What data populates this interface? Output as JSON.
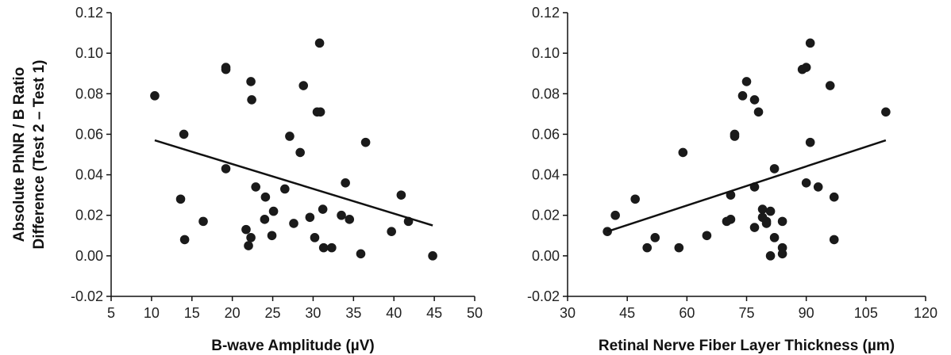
{
  "chart_data": [
    {
      "type": "scatter",
      "title": "",
      "xlabel": "B-wave Amplitude (µV)",
      "ylabel": "Absolute PhNR / B Ratio Difference (Test 2 – Test 1)",
      "ylabel_lines": [
        "Absolute PhNR / B Ratio",
        "Difference (Test 2 – Test 1)"
      ],
      "xlim": [
        5,
        50
      ],
      "ylim": [
        -0.02,
        0.12
      ],
      "x_ticks": [
        5,
        10,
        15,
        20,
        25,
        30,
        35,
        40,
        45,
        50
      ],
      "x_tick_labels": [
        "5",
        "10",
        "15",
        "20",
        "25",
        "30",
        "35",
        "40",
        "45",
        "50"
      ],
      "y_ticks": [
        -0.02,
        0.0,
        0.02,
        0.04,
        0.06,
        0.08,
        0.1,
        0.12
      ],
      "y_tick_labels": [
        "-0.02",
        "0.00",
        "0.02",
        "0.04",
        "0.06",
        "0.08",
        "0.10",
        "0.12"
      ],
      "grid": false,
      "trendline": [
        [
          10.4,
          0.057
        ],
        [
          44.8,
          0.015
        ]
      ],
      "points": [
        [
          10.4,
          0.079
        ],
        [
          13.6,
          0.028
        ],
        [
          14.0,
          0.06
        ],
        [
          14.1,
          0.008
        ],
        [
          16.4,
          0.017
        ],
        [
          19.2,
          0.093
        ],
        [
          19.2,
          0.092
        ],
        [
          19.2,
          0.043
        ],
        [
          21.7,
          0.013
        ],
        [
          22.0,
          0.005
        ],
        [
          22.3,
          0.086
        ],
        [
          22.4,
          0.077
        ],
        [
          22.3,
          0.009
        ],
        [
          22.9,
          0.034
        ],
        [
          24.1,
          0.029
        ],
        [
          24.0,
          0.018
        ],
        [
          24.9,
          0.01
        ],
        [
          25.1,
          0.022
        ],
        [
          26.5,
          0.033
        ],
        [
          27.1,
          0.059
        ],
        [
          27.6,
          0.016
        ],
        [
          28.4,
          0.051
        ],
        [
          28.8,
          0.084
        ],
        [
          29.6,
          0.019
        ],
        [
          30.2,
          0.009
        ],
        [
          30.5,
          0.071
        ],
        [
          30.9,
          0.071
        ],
        [
          30.8,
          0.105
        ],
        [
          31.2,
          0.023
        ],
        [
          31.3,
          0.004
        ],
        [
          32.3,
          0.004
        ],
        [
          33.5,
          0.02
        ],
        [
          34.0,
          0.036
        ],
        [
          34.5,
          0.018
        ],
        [
          35.9,
          0.001
        ],
        [
          36.5,
          0.056
        ],
        [
          39.7,
          0.012
        ],
        [
          40.9,
          0.03
        ],
        [
          41.8,
          0.017
        ],
        [
          44.8,
          0.0
        ]
      ]
    },
    {
      "type": "scatter",
      "title": "",
      "xlabel": "Retinal Nerve Fiber Layer Thickness (µm)",
      "ylabel": "",
      "xlim": [
        30,
        120
      ],
      "ylim": [
        -0.02,
        0.12
      ],
      "x_ticks": [
        30,
        45,
        60,
        75,
        90,
        105,
        120
      ],
      "x_tick_labels": [
        "30",
        "45",
        "60",
        "75",
        "90",
        "105",
        "120"
      ],
      "y_ticks": [
        -0.02,
        0.0,
        0.02,
        0.04,
        0.06,
        0.08,
        0.1,
        0.12
      ],
      "y_tick_labels": [
        "-0.02",
        "0.00",
        "0.02",
        "0.04",
        "0.06",
        "0.08",
        "0.10",
        "0.12"
      ],
      "grid": false,
      "trendline": [
        [
          40,
          0.012
        ],
        [
          110,
          0.057
        ]
      ],
      "points": [
        [
          40.0,
          0.012
        ],
        [
          42.0,
          0.02
        ],
        [
          47.0,
          0.028
        ],
        [
          50.0,
          0.004
        ],
        [
          52.0,
          0.009
        ],
        [
          58.0,
          0.004
        ],
        [
          59.0,
          0.051
        ],
        [
          65.0,
          0.01
        ],
        [
          70.0,
          0.017
        ],
        [
          71.0,
          0.018
        ],
        [
          71.0,
          0.03
        ],
        [
          72.0,
          0.06
        ],
        [
          72.0,
          0.059
        ],
        [
          74.0,
          0.079
        ],
        [
          75.0,
          0.086
        ],
        [
          77.0,
          0.077
        ],
        [
          77.0,
          0.034
        ],
        [
          77.0,
          0.014
        ],
        [
          78.0,
          0.071
        ],
        [
          79.0,
          0.023
        ],
        [
          79.0,
          0.019
        ],
        [
          80.0,
          0.017
        ],
        [
          80.0,
          0.016
        ],
        [
          81.0,
          0.0
        ],
        [
          81.0,
          0.022
        ],
        [
          82.0,
          0.043
        ],
        [
          82.0,
          0.009
        ],
        [
          84.0,
          0.004
        ],
        [
          84.0,
          0.001
        ],
        [
          84.0,
          0.017
        ],
        [
          89.0,
          0.092
        ],
        [
          90.0,
          0.093
        ],
        [
          90.0,
          0.036
        ],
        [
          91.0,
          0.105
        ],
        [
          91.0,
          0.056
        ],
        [
          93.0,
          0.034
        ],
        [
          96.0,
          0.084
        ],
        [
          97.0,
          0.029
        ],
        [
          97.0,
          0.008
        ],
        [
          110.0,
          0.071
        ]
      ]
    }
  ]
}
